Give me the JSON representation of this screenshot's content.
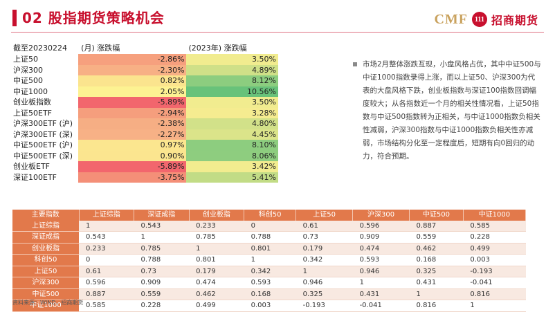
{
  "header": {
    "title": "02 股指期货策略机会",
    "logo_text": "CMF",
    "logo_badge": "111",
    "logo_cn": "招商期货",
    "accent_color": "#c8102e"
  },
  "performance": {
    "date_label": "截至20230224",
    "month_label": "(月) 涨跌幅",
    "year_label": "(2023年) 涨跌幅",
    "rows": [
      {
        "name": "上证50",
        "month": "-2.86%",
        "year": "3.50%",
        "month_color": "#f6a07e",
        "year_color": "#f1ec8f"
      },
      {
        "name": "沪深300",
        "month": "-2.30%",
        "year": "4.89%",
        "month_color": "#f7b085",
        "year_color": "#cfe088"
      },
      {
        "name": "中证500",
        "month": "0.82%",
        "year": "8.12%",
        "month_color": "#fbe48e",
        "year_color": "#8ccd7f"
      },
      {
        "name": "中证1000",
        "month": "2.05%",
        "year": "10.56%",
        "month_color": "#fdf292",
        "year_color": "#68c27a"
      },
      {
        "name": "创业板指数",
        "month": "-5.89%",
        "year": "3.50%",
        "month_color": "#f2666d",
        "year_color": "#f1ec8f"
      },
      {
        "name": "上证50ETF",
        "month": "-2.94%",
        "year": "3.28%",
        "month_color": "#f59e7d",
        "year_color": "#f5ec90"
      },
      {
        "name": "沪深300ETF (沪)",
        "month": "-2.38%",
        "year": "4.80%",
        "month_color": "#f6ae84",
        "year_color": "#d2e189"
      },
      {
        "name": "沪深300ETF (深)",
        "month": "-2.27%",
        "year": "4.45%",
        "month_color": "#f7b186",
        "year_color": "#dbe48a"
      },
      {
        "name": "中证500ETF (沪)",
        "month": "0.97%",
        "year": "8.10%",
        "month_color": "#fbe68f",
        "year_color": "#8dcd7f"
      },
      {
        "name": "中证500ETF (深)",
        "month": "0.90%",
        "year": "8.06%",
        "month_color": "#fbe58f",
        "year_color": "#8ecd7f"
      },
      {
        "name": "创业板ETF",
        "month": "-5.89%",
        "year": "3.42%",
        "month_color": "#f2666d",
        "year_color": "#f2ec8f"
      },
      {
        "name": "深证100ETF",
        "month": "-3.75%",
        "year": "5.41%",
        "month_color": "#f48f78",
        "year_color": "#c2dc86"
      }
    ]
  },
  "note": {
    "text": "市场2月整体涨跌互现，小盘风格占优，其中中证500与中证1000指数录得上涨，而以上证50、沪深300为代表的大盘风格下跌，创业板指数与深证100指数回调幅度较大；从各指数近一个月的相关性情况看，上证50指数与中证500指数转为正相关，与中证1000指数负相关性减弱，沪深300指数与中证1000指数负相关性亦减弱，市场结构分化至一定程度后，短期有向0回归的动力，符合预期。"
  },
  "correlation": {
    "corner": "主要指数",
    "headers": [
      "上证综指",
      "深证成指",
      "创业板指",
      "科创50",
      "上证50",
      "沪深300",
      "中证500",
      "中证1000"
    ],
    "rows": [
      {
        "name": "上证综指",
        "values": [
          "1",
          "0.543",
          "0.233",
          "0",
          "0.61",
          "0.596",
          "0.887",
          "0.585"
        ]
      },
      {
        "name": "深证成指",
        "values": [
          "0.543",
          "1",
          "0.785",
          "0.788",
          "0.73",
          "0.909",
          "0.559",
          "0.228"
        ]
      },
      {
        "name": "创业板指",
        "values": [
          "0.233",
          "0.785",
          "1",
          "0.801",
          "0.179",
          "0.474",
          "0.462",
          "0.499"
        ]
      },
      {
        "name": "科创50",
        "values": [
          "0",
          "0.788",
          "0.801",
          "1",
          "0.342",
          "0.593",
          "0.168",
          "0.003"
        ]
      },
      {
        "name": "上证50",
        "values": [
          "0.61",
          "0.73",
          "0.179",
          "0.342",
          "1",
          "0.946",
          "0.325",
          "-0.193"
        ]
      },
      {
        "name": "沪深300",
        "values": [
          "0.596",
          "0.909",
          "0.474",
          "0.593",
          "0.946",
          "1",
          "0.431",
          "-0.041"
        ]
      },
      {
        "name": "中证500",
        "values": [
          "0.887",
          "0.559",
          "0.462",
          "0.168",
          "0.325",
          "0.431",
          "1",
          "0.816"
        ]
      },
      {
        "name": "中证1000",
        "values": [
          "0.585",
          "0.228",
          "0.499",
          "0.003",
          "-0.193",
          "-0.041",
          "0.816",
          "1"
        ]
      }
    ]
  },
  "source": "资料来源：WIND，招商期货"
}
